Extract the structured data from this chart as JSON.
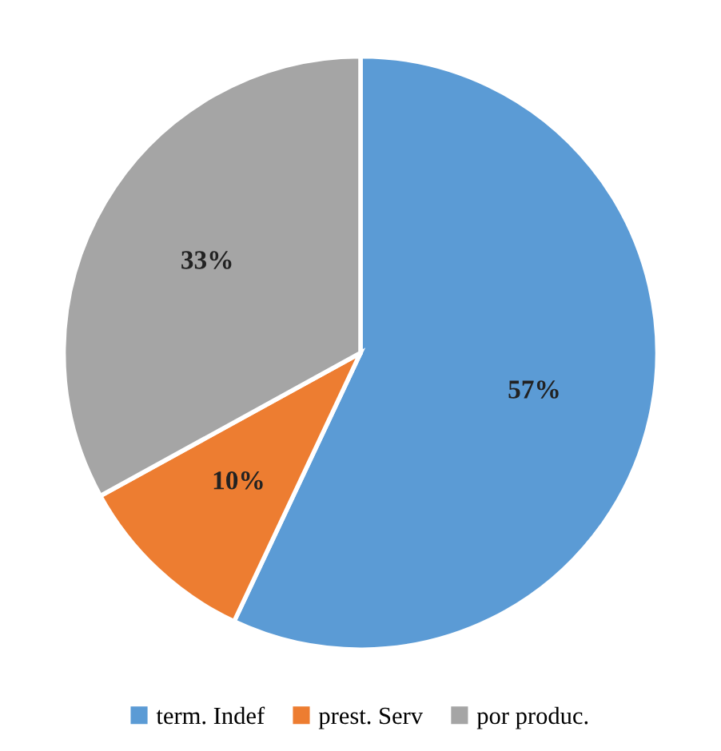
{
  "chart_data": {
    "type": "pie",
    "categories": [
      "term. Indef",
      "prest. Serv",
      "por produc."
    ],
    "values": [
      57,
      10,
      33
    ],
    "value_labels": [
      "57%",
      "10%",
      "33%"
    ],
    "colors": [
      "#5b9bd5",
      "#ed7d31",
      "#a5a5a5"
    ],
    "legend": "bottom"
  }
}
